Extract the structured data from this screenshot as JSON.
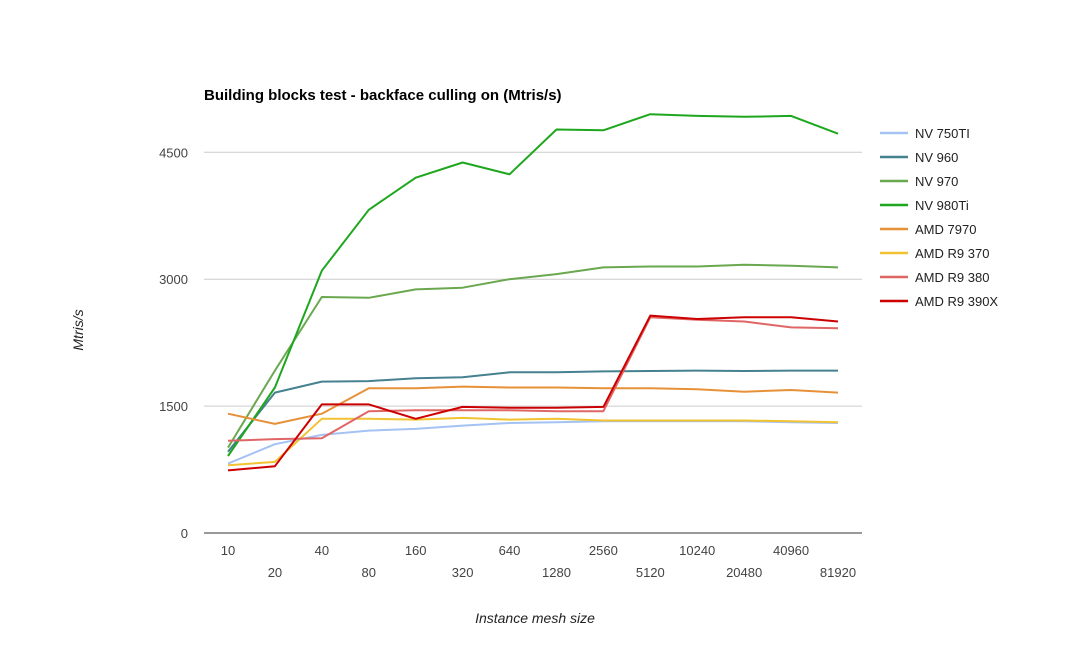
{
  "chart_data": {
    "type": "line",
    "title": "Building blocks test - backface culling on (Mtris/s)",
    "xlabel": "Instance mesh size",
    "ylabel": "Mtris/s",
    "categories": [
      "10",
      "20",
      "40",
      "80",
      "160",
      "320",
      "640",
      "1280",
      "2560",
      "5120",
      "10240",
      "20480",
      "40960",
      "81920"
    ],
    "yticks": [
      "0",
      "1500",
      "3000",
      "4500"
    ],
    "ylim": [
      0,
      5000
    ],
    "grid": true,
    "legend_position": "right",
    "series": [
      {
        "name": "NV 750TI",
        "color": "#a4c2f4",
        "values": [
          820,
          1050,
          1160,
          1210,
          1230,
          1270,
          1300,
          1310,
          1320,
          1320,
          1320,
          1320,
          1310,
          1300
        ]
      },
      {
        "name": "NV 960",
        "color": "#45818e",
        "values": [
          960,
          1660,
          1790,
          1795,
          1830,
          1840,
          1900,
          1900,
          1910,
          1915,
          1920,
          1915,
          1920,
          1920
        ]
      },
      {
        "name": "NV 970",
        "color": "#6aa84f",
        "values": [
          1010,
          1920,
          2790,
          2780,
          2880,
          2900,
          3000,
          3060,
          3140,
          3150,
          3150,
          3170,
          3160,
          3140
        ]
      },
      {
        "name": "NV 980Ti",
        "color": "#1ea71e",
        "values": [
          910,
          1720,
          3100,
          3820,
          4200,
          4380,
          4240,
          4770,
          4760,
          4950,
          4930,
          4920,
          4930,
          4720
        ]
      },
      {
        "name": "AMD 7970",
        "color": "#e69138",
        "values": [
          1410,
          1290,
          1410,
          1710,
          1710,
          1730,
          1720,
          1720,
          1710,
          1710,
          1700,
          1670,
          1690,
          1660
        ]
      },
      {
        "name": "AMD R9 370",
        "color": "#f1c232",
        "values": [
          800,
          840,
          1350,
          1350,
          1340,
          1360,
          1340,
          1350,
          1330,
          1330,
          1330,
          1330,
          1320,
          1310
        ]
      },
      {
        "name": "AMD R9 380",
        "color": "#e06666",
        "values": [
          1090,
          1110,
          1120,
          1440,
          1450,
          1450,
          1450,
          1440,
          1440,
          2550,
          2520,
          2500,
          2430,
          2420
        ]
      },
      {
        "name": "AMD R9 390X",
        "color": "#cc0000",
        "values": [
          740,
          790,
          1520,
          1520,
          1350,
          1490,
          1480,
          1480,
          1490,
          2570,
          2530,
          2550,
          2550,
          2500
        ]
      }
    ]
  }
}
